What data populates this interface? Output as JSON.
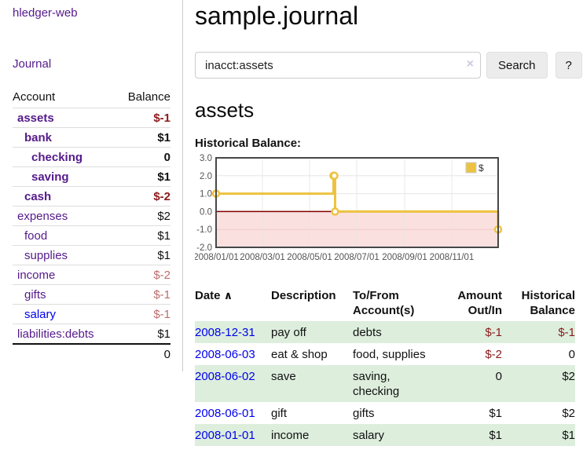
{
  "colors": {
    "purple": "#551a8b",
    "blue": "#0000ee",
    "negStrong": "#8b1a1a",
    "negFaded": "#bd6d6d",
    "rowGreen": "#ddeedd",
    "gold": "#edc240",
    "pink": "#fbe0e0",
    "zero": "#800000",
    "grid": "#e6e6e6",
    "plotBorder": "#474747",
    "tick": "#545454",
    "btnBg": "#ececec",
    "inputBorder": "#cccccc",
    "sideBorder": "#cccccc",
    "rowBorder": "#dddddd"
  },
  "app": {
    "title": "hledger-web"
  },
  "sidebar": {
    "journal_link": "Journal",
    "accounts": {
      "header_account": "Account",
      "header_balance": "Balance",
      "rows": [
        {
          "name": "assets",
          "balance": "$-1"
        },
        {
          "name": "bank",
          "balance": "$1"
        },
        {
          "name": "checking",
          "balance": "0"
        },
        {
          "name": "saving",
          "balance": "$1"
        },
        {
          "name": "cash",
          "balance": "$-2"
        },
        {
          "name": "expenses",
          "balance": "$2"
        },
        {
          "name": "food",
          "balance": "$1"
        },
        {
          "name": "supplies",
          "balance": "$1"
        },
        {
          "name": "income",
          "balance": "$-2"
        },
        {
          "name": "gifts",
          "balance": "$-1"
        },
        {
          "name": "salary",
          "balance": "$-1"
        },
        {
          "name": "liabilities:debts",
          "balance": "$1"
        }
      ],
      "total": "0"
    }
  },
  "main": {
    "title": "sample.journal",
    "search": {
      "value": "inacct:assets",
      "clear_icon": "×",
      "button": "Search",
      "help_button": "?"
    },
    "account_heading": "assets",
    "chart_label": "Historical Balance:"
  },
  "chart_data": {
    "type": "line",
    "step": true,
    "title": "Historical Balance",
    "legend": "$",
    "legend_position": "top-right",
    "ylim": [
      -2,
      3
    ],
    "y_ticks": [
      "3.0",
      "2.0",
      "1.0",
      "0.0",
      "-1.0",
      "-2.0"
    ],
    "y_tick_values": [
      3,
      2,
      1,
      0,
      -1,
      -2
    ],
    "x_range_days": 365,
    "x_ticks": [
      {
        "label": "2008/01/01",
        "day": 0
      },
      {
        "label": "2008/03/01",
        "day": 60
      },
      {
        "label": "2008/05/01",
        "day": 121
      },
      {
        "label": "2008/07/01",
        "day": 182
      },
      {
        "label": "2008/09/01",
        "day": 244
      },
      {
        "label": "2008/11/01",
        "day": 305
      }
    ],
    "series": [
      {
        "name": "$",
        "points": [
          {
            "date": "2008-01-01",
            "day": 0,
            "value": 1
          },
          {
            "date": "2008-06-01",
            "day": 152,
            "value": 2
          },
          {
            "date": "2008-06-02",
            "day": 153,
            "value": 2
          },
          {
            "date": "2008-06-03",
            "day": 154,
            "value": 0
          },
          {
            "date": "2008-12-31",
            "day": 365,
            "value": -1
          }
        ]
      }
    ],
    "negative_region_shaded": true,
    "grid": true
  },
  "register": {
    "sort_icon": "∧",
    "headers": [
      "Date",
      "Description",
      "To/From Account(s)",
      "Amount Out/In",
      "Historical Balance"
    ],
    "rows": [
      {
        "date": "2008-12-31",
        "description": "pay off",
        "accounts": "debts",
        "amount": "$-1",
        "balance": "$-1"
      },
      {
        "date": "2008-06-03",
        "description": "eat & shop",
        "accounts": "food, supplies",
        "amount": "$-2",
        "balance": "0"
      },
      {
        "date": "2008-06-02",
        "description": "save",
        "accounts": "saving, checking",
        "amount": "0",
        "balance": "$2"
      },
      {
        "date": "2008-06-01",
        "description": "gift",
        "accounts": "gifts",
        "amount": "$1",
        "balance": "$2"
      },
      {
        "date": "2008-01-01",
        "description": "income",
        "accounts": "salary",
        "amount": "$1",
        "balance": "$1"
      }
    ]
  }
}
